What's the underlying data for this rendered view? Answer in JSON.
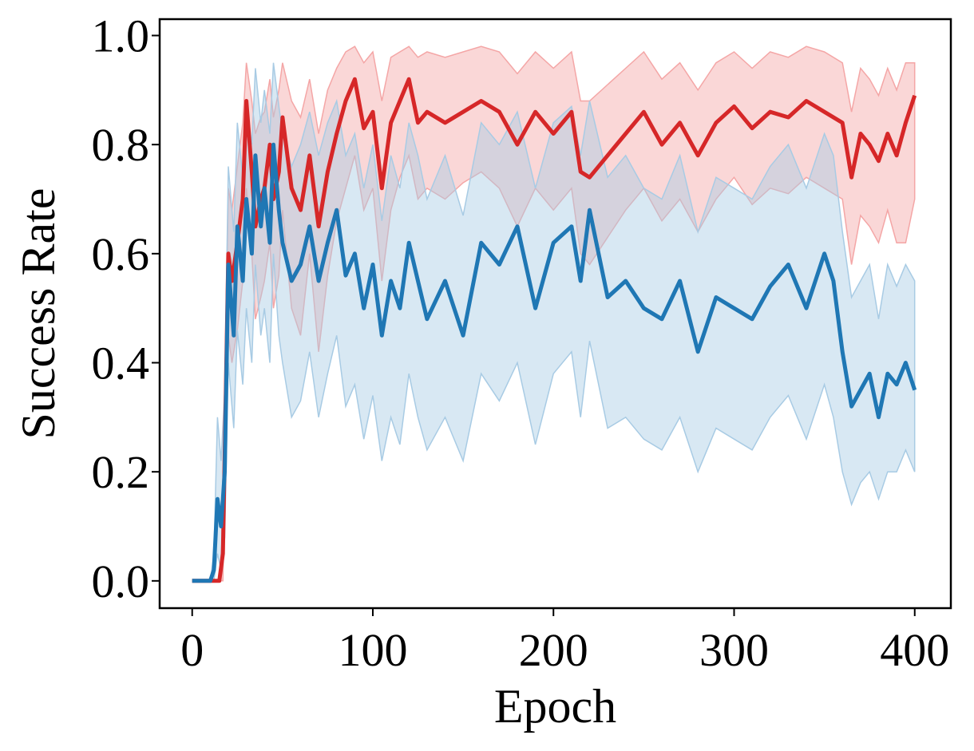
{
  "chart_data": {
    "type": "line",
    "title": "",
    "xlabel": "Epoch",
    "ylabel": "Success Rate",
    "xlim": [
      -18,
      420
    ],
    "ylim": [
      -0.05,
      1.03
    ],
    "xticks": [
      0,
      100,
      200,
      300,
      400
    ],
    "xtick_labels": [
      "0",
      "100",
      "200",
      "300",
      "400"
    ],
    "yticks": [
      0.0,
      0.2,
      0.4,
      0.6,
      0.8,
      1.0
    ],
    "ytick_labels": [
      "0.0",
      "0.2",
      "0.4",
      "0.6",
      "0.8",
      "1.0"
    ],
    "grid": false,
    "legend": "none",
    "series": [
      {
        "color": "#d62728",
        "band_color": "#f4a6a6",
        "x": [
          0,
          10,
          15,
          17,
          20,
          22,
          25,
          28,
          30,
          33,
          35,
          38,
          40,
          43,
          45,
          48,
          50,
          55,
          60,
          65,
          70,
          75,
          80,
          85,
          90,
          95,
          100,
          105,
          110,
          115,
          120,
          125,
          130,
          140,
          150,
          160,
          170,
          180,
          190,
          200,
          210,
          215,
          220,
          230,
          240,
          250,
          260,
          270,
          280,
          290,
          300,
          310,
          320,
          330,
          340,
          350,
          360,
          365,
          370,
          375,
          380,
          385,
          390,
          395,
          400
        ],
        "mean": [
          0.0,
          0.0,
          0.0,
          0.05,
          0.6,
          0.55,
          0.62,
          0.7,
          0.88,
          0.75,
          0.65,
          0.7,
          0.72,
          0.8,
          0.7,
          0.75,
          0.85,
          0.72,
          0.68,
          0.78,
          0.65,
          0.75,
          0.82,
          0.88,
          0.92,
          0.83,
          0.86,
          0.72,
          0.84,
          0.88,
          0.92,
          0.84,
          0.86,
          0.84,
          0.86,
          0.88,
          0.86,
          0.8,
          0.86,
          0.82,
          0.86,
          0.75,
          0.74,
          0.78,
          0.82,
          0.86,
          0.8,
          0.84,
          0.78,
          0.84,
          0.87,
          0.83,
          0.86,
          0.85,
          0.88,
          0.86,
          0.84,
          0.74,
          0.82,
          0.8,
          0.77,
          0.82,
          0.78,
          0.84,
          0.89
        ],
        "lower": [
          0.0,
          0.0,
          0.0,
          0.0,
          0.45,
          0.4,
          0.46,
          0.55,
          0.72,
          0.6,
          0.48,
          0.52,
          0.55,
          0.62,
          0.5,
          0.56,
          0.68,
          0.5,
          0.45,
          0.6,
          0.42,
          0.56,
          0.66,
          0.72,
          0.78,
          0.68,
          0.72,
          0.55,
          0.68,
          0.74,
          0.78,
          0.7,
          0.72,
          0.7,
          0.73,
          0.75,
          0.72,
          0.65,
          0.72,
          0.68,
          0.72,
          0.6,
          0.58,
          0.63,
          0.68,
          0.72,
          0.66,
          0.7,
          0.64,
          0.7,
          0.74,
          0.69,
          0.72,
          0.71,
          0.74,
          0.72,
          0.7,
          0.58,
          0.67,
          0.65,
          0.62,
          0.68,
          0.62,
          0.62,
          0.7
        ],
        "upper": [
          0.0,
          0.0,
          0.0,
          0.1,
          0.72,
          0.68,
          0.76,
          0.84,
          0.95,
          0.88,
          0.82,
          0.85,
          0.86,
          0.92,
          0.85,
          0.9,
          0.95,
          0.88,
          0.85,
          0.92,
          0.82,
          0.9,
          0.94,
          0.97,
          0.98,
          0.95,
          0.97,
          0.88,
          0.96,
          0.97,
          0.98,
          0.96,
          0.97,
          0.96,
          0.97,
          0.98,
          0.97,
          0.93,
          0.97,
          0.94,
          0.97,
          0.88,
          0.88,
          0.91,
          0.94,
          0.97,
          0.92,
          0.95,
          0.9,
          0.95,
          0.97,
          0.94,
          0.97,
          0.96,
          0.98,
          0.97,
          0.95,
          0.86,
          0.94,
          0.92,
          0.89,
          0.94,
          0.9,
          0.95,
          0.95
        ]
      },
      {
        "color": "#1f77b4",
        "band_color": "#a8cbe4",
        "x": [
          0,
          10,
          12,
          14,
          16,
          18,
          20,
          23,
          25,
          28,
          30,
          33,
          35,
          38,
          40,
          43,
          45,
          48,
          50,
          55,
          60,
          65,
          70,
          75,
          80,
          85,
          90,
          95,
          100,
          105,
          110,
          115,
          120,
          125,
          130,
          140,
          150,
          160,
          170,
          180,
          190,
          200,
          210,
          215,
          220,
          230,
          240,
          250,
          260,
          270,
          280,
          290,
          300,
          310,
          320,
          330,
          340,
          350,
          355,
          360,
          365,
          370,
          375,
          380,
          385,
          390,
          395,
          400
        ],
        "mean": [
          0.0,
          0.0,
          0.02,
          0.15,
          0.1,
          0.2,
          0.58,
          0.45,
          0.65,
          0.55,
          0.7,
          0.6,
          0.78,
          0.65,
          0.72,
          0.62,
          0.8,
          0.68,
          0.62,
          0.55,
          0.58,
          0.65,
          0.55,
          0.62,
          0.68,
          0.56,
          0.6,
          0.5,
          0.58,
          0.45,
          0.55,
          0.5,
          0.62,
          0.55,
          0.48,
          0.55,
          0.45,
          0.62,
          0.58,
          0.65,
          0.5,
          0.62,
          0.65,
          0.55,
          0.68,
          0.52,
          0.55,
          0.5,
          0.48,
          0.55,
          0.42,
          0.52,
          0.5,
          0.48,
          0.54,
          0.58,
          0.5,
          0.6,
          0.55,
          0.42,
          0.32,
          0.35,
          0.38,
          0.3,
          0.38,
          0.36,
          0.4,
          0.35
        ],
        "lower": [
          0.0,
          0.0,
          0.0,
          0.05,
          0.02,
          0.08,
          0.4,
          0.28,
          0.46,
          0.36,
          0.5,
          0.4,
          0.58,
          0.45,
          0.5,
          0.4,
          0.6,
          0.45,
          0.4,
          0.3,
          0.33,
          0.42,
          0.3,
          0.38,
          0.45,
          0.32,
          0.36,
          0.26,
          0.34,
          0.22,
          0.3,
          0.25,
          0.38,
          0.3,
          0.24,
          0.3,
          0.22,
          0.38,
          0.33,
          0.4,
          0.25,
          0.38,
          0.42,
          0.3,
          0.44,
          0.28,
          0.3,
          0.26,
          0.24,
          0.3,
          0.2,
          0.28,
          0.26,
          0.24,
          0.3,
          0.34,
          0.26,
          0.36,
          0.3,
          0.2,
          0.14,
          0.18,
          0.2,
          0.15,
          0.2,
          0.2,
          0.24,
          0.2
        ],
        "upper": [
          0.0,
          0.0,
          0.05,
          0.3,
          0.22,
          0.35,
          0.76,
          0.64,
          0.84,
          0.74,
          0.88,
          0.8,
          0.94,
          0.84,
          0.9,
          0.82,
          0.95,
          0.87,
          0.82,
          0.76,
          0.8,
          0.86,
          0.78,
          0.84,
          0.88,
          0.78,
          0.82,
          0.72,
          0.8,
          0.66,
          0.78,
          0.72,
          0.84,
          0.78,
          0.7,
          0.78,
          0.67,
          0.84,
          0.8,
          0.86,
          0.72,
          0.84,
          0.87,
          0.78,
          0.88,
          0.74,
          0.78,
          0.72,
          0.7,
          0.78,
          0.64,
          0.74,
          0.72,
          0.7,
          0.76,
          0.8,
          0.72,
          0.82,
          0.78,
          0.64,
          0.52,
          0.55,
          0.58,
          0.48,
          0.58,
          0.54,
          0.58,
          0.55
        ]
      }
    ]
  }
}
